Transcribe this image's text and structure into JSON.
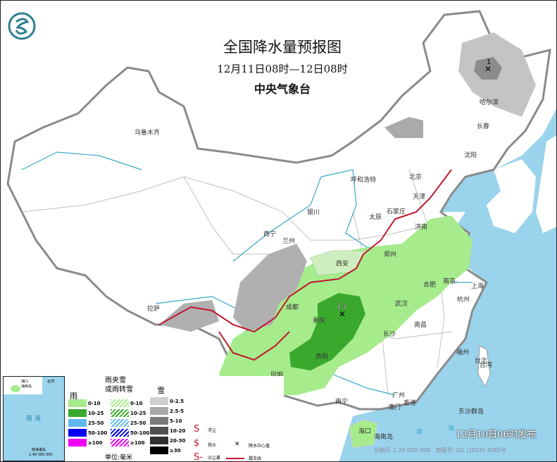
{
  "header": {
    "title": "全国降水量预报图",
    "period": "12月11日08时—12日08时",
    "agency": "中央气象台",
    "logo": "cma-dragon-logo"
  },
  "colors": {
    "sea": "#9ad3ec",
    "rain_0_10": "#a6eb8c",
    "rain_10_25": "#3aa82c",
    "rain_25_50": "#60b8f0",
    "rain_50_100": "#0000f0",
    "rain_100": "#f000f0",
    "snow_0_2_5": "#cfcfcf",
    "snow_2_5_5": "#a8a8a8",
    "snow_5_10": "#7a7a7a",
    "snow_10_20": "#505050",
    "snow_20_30": "#303030",
    "snow_30": "#000000",
    "front": "#c0182e"
  },
  "cities": [
    "乌鲁木齐",
    "呼和浩特",
    "银川",
    "西宁",
    "兰州",
    "西安",
    "太原",
    "石家庄",
    "北京",
    "天津",
    "沈阳",
    "长春",
    "哈尔滨",
    "济南",
    "郑州",
    "成都",
    "重庆",
    "贵阳",
    "昆明",
    "武汉",
    "长沙",
    "南昌",
    "合肥",
    "南京",
    "上海",
    "杭州",
    "福州",
    "台北",
    "南宁",
    "广州",
    "香港",
    "澳门",
    "海口",
    "拉萨"
  ],
  "labels": {
    "max_chongqing": "13",
    "max_heilongjiang": "1",
    "hainan_island": "海南岛",
    "nanhai": [
      "南",
      "海"
    ],
    "taiwan": "台湾",
    "dongsha": "东沙群岛"
  },
  "inset": {
    "haikou": "海口",
    "hainan": "海南岛",
    "nanhai": "南 海",
    "taiwan": "台湾",
    "islands": "南海诸岛",
    "scale": "1:40 000 000"
  },
  "legend": {
    "rain_title": "雨",
    "mix_title": "雨夹雪\n或雨转雪",
    "snow_title": "雪",
    "rain": [
      "0-10",
      "10-25",
      "25-50",
      "50-100",
      "≥100"
    ],
    "mix": [
      "0-10",
      "10-25",
      "25-50",
      "50-100",
      "≥100"
    ],
    "snow": [
      "0-2.5",
      "2.5-5",
      "5-10",
      "10-20",
      "20-30",
      "≥30"
    ],
    "symbols": {
      "floating_dust": "浮尘",
      "blowing_sand": "扬沙",
      "sandstorm": "沙尘暴",
      "max_center": "降水中心值",
      "front": "霜冻线"
    },
    "unit": "单位:毫米"
  },
  "footer": {
    "issued": "12月10日06时发布",
    "scale": "比例尺 1:20 000 000",
    "map_no": "审图号: GS (2019) 3082号"
  }
}
